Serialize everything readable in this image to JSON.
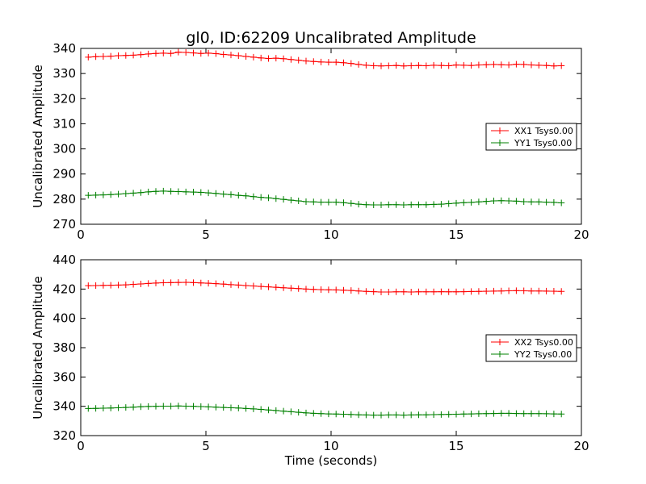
{
  "chart_data": [
    {
      "type": "line",
      "title": "gl0, ID:62209 Uncalibrated Amplitude",
      "xlabel": "",
      "ylabel": "Uncalibrated Amplitude",
      "xlim": [
        0,
        20
      ],
      "ylim": [
        270,
        340
      ],
      "xticks": [
        "0",
        "5",
        "10",
        "15",
        "20"
      ],
      "yticks": [
        "270",
        "280",
        "290",
        "300",
        "310",
        "320",
        "330",
        "340"
      ],
      "legend_position": "center-right",
      "grid": false,
      "x": [
        0.3,
        0.6,
        0.9,
        1.2,
        1.5,
        1.8,
        2.1,
        2.4,
        2.7,
        3.0,
        3.3,
        3.6,
        3.9,
        4.2,
        4.5,
        4.8,
        5.1,
        5.4,
        5.7,
        6.0,
        6.3,
        6.6,
        6.9,
        7.2,
        7.5,
        7.8,
        8.1,
        8.4,
        8.7,
        9.0,
        9.3,
        9.6,
        9.9,
        10.2,
        10.5,
        10.8,
        11.1,
        11.4,
        11.7,
        12.0,
        12.3,
        12.6,
        12.9,
        13.2,
        13.5,
        13.8,
        14.1,
        14.4,
        14.7,
        15.0,
        15.3,
        15.6,
        15.9,
        16.2,
        16.5,
        16.8,
        17.1,
        17.4,
        17.7,
        18.0,
        18.3,
        18.6,
        18.9,
        19.2
      ],
      "series": [
        {
          "name": "XX1 Tsys0.00",
          "color": "#ff0000",
          "values": [
            336.5,
            336.7,
            336.8,
            336.9,
            337.1,
            337.2,
            337.3,
            337.5,
            337.8,
            338.0,
            338.1,
            338.0,
            338.5,
            338.4,
            338.2,
            338.0,
            338.1,
            337.9,
            337.6,
            337.4,
            337.1,
            336.8,
            336.5,
            336.2,
            336.0,
            336.1,
            335.9,
            335.6,
            335.3,
            335.0,
            334.8,
            334.6,
            334.5,
            334.5,
            334.3,
            334.0,
            333.6,
            333.3,
            333.1,
            333.0,
            333.1,
            333.2,
            333.0,
            333.1,
            333.2,
            333.1,
            333.3,
            333.2,
            333.1,
            333.4,
            333.3,
            333.2,
            333.4,
            333.5,
            333.6,
            333.5,
            333.4,
            333.7,
            333.6,
            333.4,
            333.3,
            333.2,
            333.0,
            333.1
          ]
        },
        {
          "name": "YY1 Tsys0.00",
          "color": "#008000",
          "values": [
            281.5,
            281.6,
            281.7,
            281.8,
            282.0,
            282.2,
            282.4,
            282.6,
            282.9,
            283.1,
            283.2,
            283.1,
            283.0,
            282.9,
            282.8,
            282.7,
            282.5,
            282.3,
            282.0,
            281.8,
            281.5,
            281.3,
            281.0,
            280.7,
            280.5,
            280.2,
            279.9,
            279.6,
            279.3,
            279.0,
            278.9,
            278.8,
            278.8,
            278.8,
            278.6,
            278.3,
            278.0,
            277.8,
            277.7,
            277.7,
            277.8,
            277.8,
            277.7,
            277.8,
            277.8,
            277.8,
            277.9,
            278.0,
            278.2,
            278.4,
            278.6,
            278.7,
            278.9,
            279.1,
            279.3,
            279.4,
            279.3,
            279.2,
            279.0,
            278.9,
            278.9,
            278.8,
            278.7,
            278.5
          ]
        }
      ]
    },
    {
      "type": "line",
      "title": "",
      "xlabel": "Time (seconds)",
      "ylabel": "Uncalibrated Amplitude",
      "xlim": [
        0,
        20
      ],
      "ylim": [
        320,
        440
      ],
      "xticks": [
        "0",
        "5",
        "10",
        "15",
        "20"
      ],
      "yticks": [
        "320",
        "340",
        "360",
        "380",
        "400",
        "420",
        "440"
      ],
      "legend_position": "center-right",
      "grid": false,
      "x": [
        0.3,
        0.6,
        0.9,
        1.2,
        1.5,
        1.8,
        2.1,
        2.4,
        2.7,
        3.0,
        3.3,
        3.6,
        3.9,
        4.2,
        4.5,
        4.8,
        5.1,
        5.4,
        5.7,
        6.0,
        6.3,
        6.6,
        6.9,
        7.2,
        7.5,
        7.8,
        8.1,
        8.4,
        8.7,
        9.0,
        9.3,
        9.6,
        9.9,
        10.2,
        10.5,
        10.8,
        11.1,
        11.4,
        11.7,
        12.0,
        12.3,
        12.6,
        12.9,
        13.2,
        13.5,
        13.8,
        14.1,
        14.4,
        14.7,
        15.0,
        15.3,
        15.6,
        15.9,
        16.2,
        16.5,
        16.8,
        17.1,
        17.4,
        17.7,
        18.0,
        18.3,
        18.6,
        18.9,
        19.2
      ],
      "series": [
        {
          "name": "XX2 Tsys0.00",
          "color": "#ff0000",
          "values": [
            422.3,
            422.4,
            422.5,
            422.6,
            422.7,
            422.9,
            423.2,
            423.5,
            423.8,
            424.1,
            424.3,
            424.4,
            424.5,
            424.6,
            424.4,
            424.2,
            424.0,
            423.7,
            423.4,
            423.0,
            422.7,
            422.4,
            422.1,
            421.8,
            421.5,
            421.2,
            420.9,
            420.6,
            420.3,
            420.0,
            419.8,
            419.6,
            419.5,
            419.4,
            419.2,
            419.0,
            418.7,
            418.4,
            418.2,
            418.0,
            418.0,
            418.1,
            418.1,
            418.0,
            418.1,
            418.1,
            418.1,
            418.2,
            418.1,
            418.1,
            418.2,
            418.3,
            418.4,
            418.5,
            418.6,
            418.7,
            418.8,
            418.9,
            418.8,
            418.7,
            418.7,
            418.6,
            418.5,
            418.4
          ]
        },
        {
          "name": "YY2 Tsys0.00",
          "color": "#008000",
          "values": [
            338.5,
            338.6,
            338.7,
            338.8,
            339.0,
            339.2,
            339.4,
            339.7,
            339.9,
            340.0,
            340.1,
            340.1,
            340.2,
            340.1,
            340.0,
            339.8,
            339.6,
            339.4,
            339.2,
            339.0,
            338.8,
            338.5,
            338.2,
            337.9,
            337.5,
            337.1,
            336.7,
            336.3,
            335.9,
            335.5,
            335.2,
            335.0,
            334.8,
            334.7,
            334.6,
            334.4,
            334.2,
            334.1,
            334.0,
            334.0,
            334.1,
            334.1,
            334.0,
            334.1,
            334.2,
            334.2,
            334.3,
            334.4,
            334.5,
            334.6,
            334.7,
            334.8,
            334.9,
            335.0,
            335.1,
            335.2,
            335.2,
            335.1,
            335.0,
            335.0,
            335.0,
            334.9,
            334.8,
            334.7
          ]
        }
      ]
    }
  ]
}
